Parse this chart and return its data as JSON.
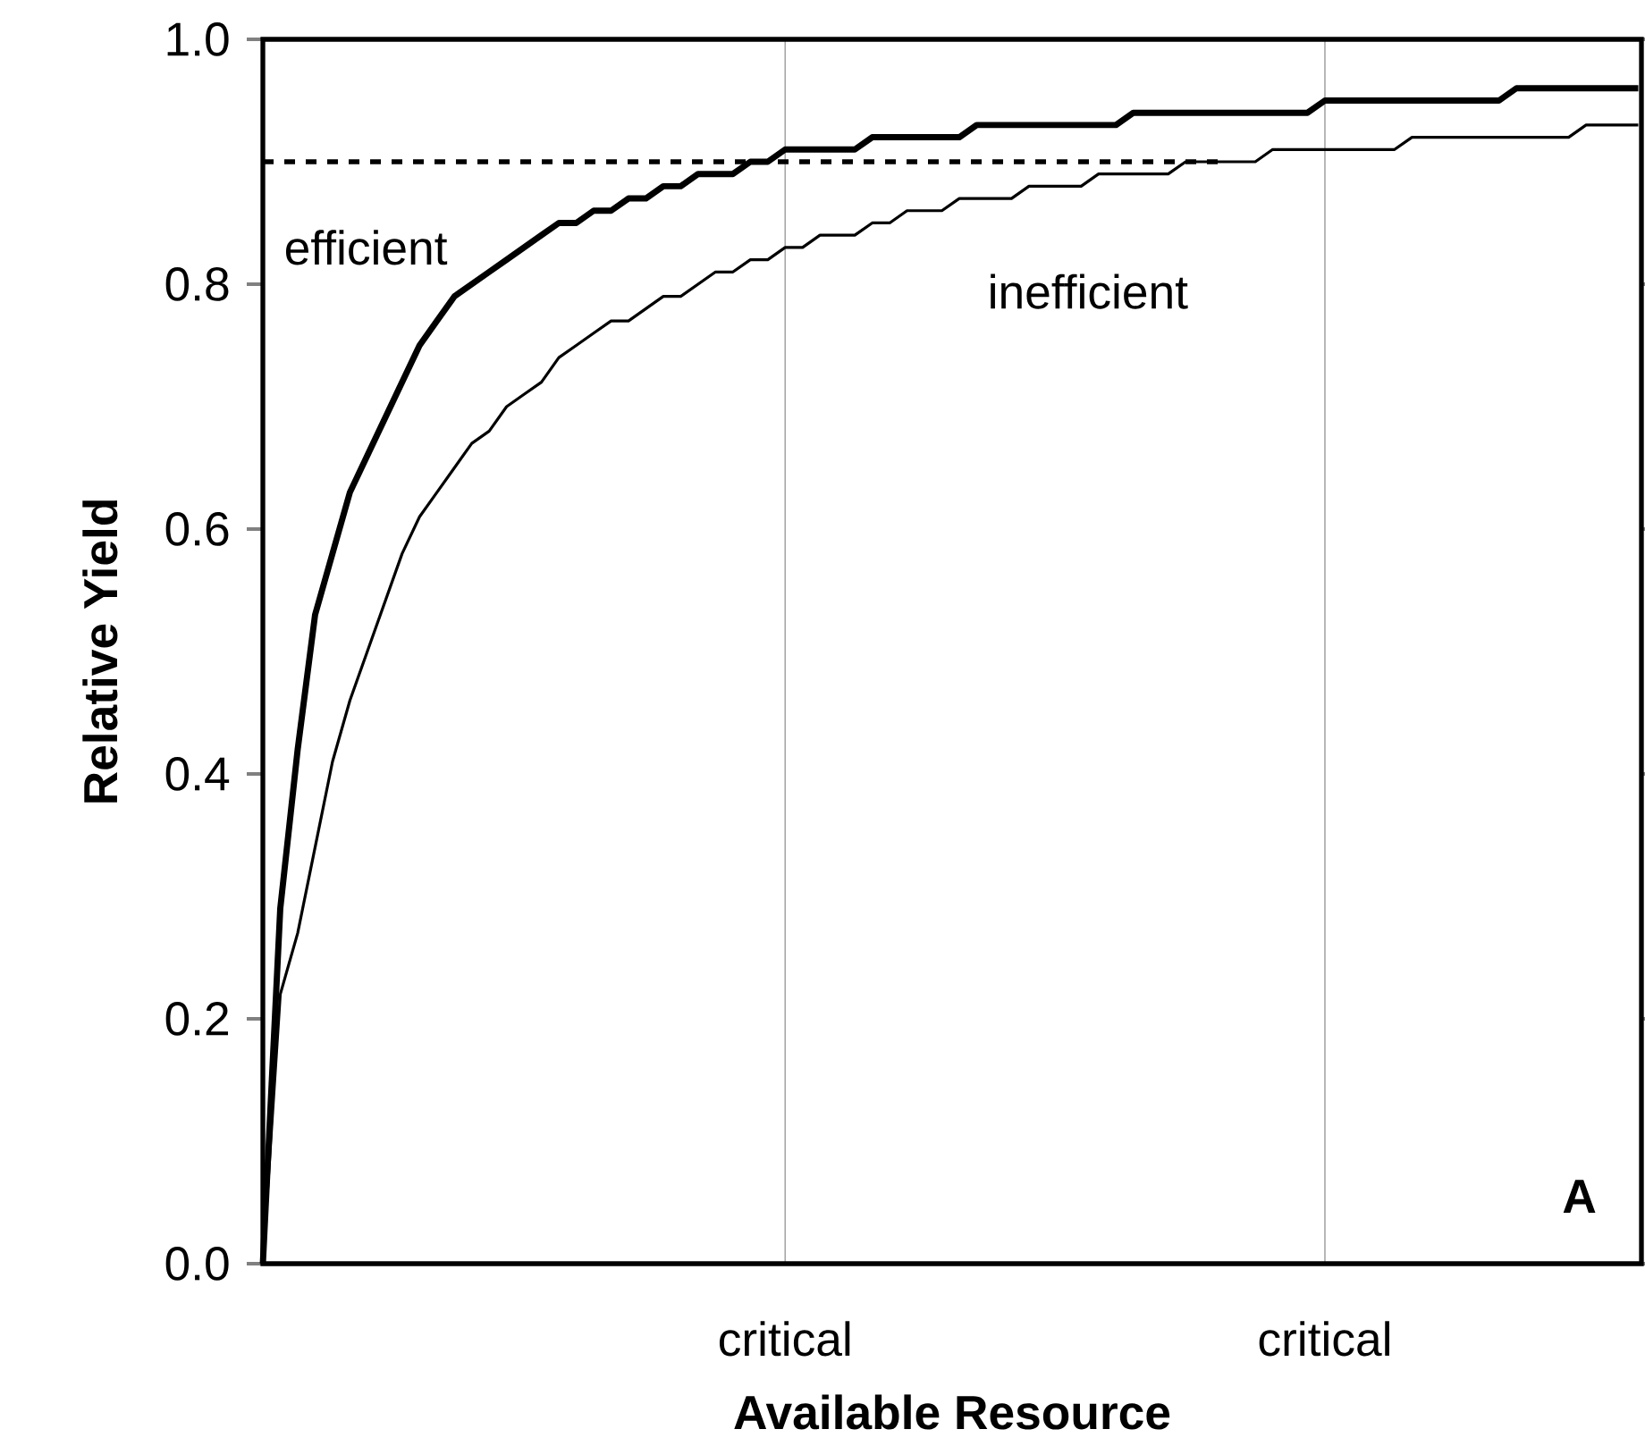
{
  "chart_data": {
    "type": "line",
    "xlabel": "Available Resource",
    "ylabel": "Relative Yield",
    "categories": [
      null,
      null,
      null,
      null,
      null,
      null,
      null,
      null,
      null,
      null,
      null,
      null,
      null,
      null,
      null,
      null,
      null,
      null,
      null,
      null,
      null,
      null,
      null,
      null,
      null,
      null,
      null,
      null,
      null,
      null,
      "critical",
      null,
      null,
      null,
      null,
      null,
      null,
      null,
      null,
      null,
      null,
      null,
      null,
      null,
      null,
      null,
      null,
      null,
      null,
      null,
      null,
      null,
      null,
      null,
      null,
      null,
      null,
      null,
      null,
      null,
      null,
      "critical",
      null,
      null,
      null,
      null,
      null,
      null,
      null,
      null,
      null,
      null,
      null,
      null,
      null,
      null,
      null,
      null,
      null,
      null
    ],
    "ylim": [
      0,
      1.0
    ],
    "yticks": [
      {
        "value": 0,
        "label": "0.0"
      },
      {
        "value": 0.2,
        "label": "0.2"
      },
      {
        "value": 0.4,
        "label": "0.4"
      },
      {
        "value": 0.6,
        "label": "0.6"
      },
      {
        "value": 0.8,
        "label": "0.8"
      },
      {
        "value": 1.0,
        "label": "1.0"
      }
    ],
    "grid": "x",
    "marker": "none",
    "series": [
      {
        "name": "efficient",
        "color": "#000000",
        "values": [
          0,
          0.29,
          0.42,
          0.53,
          0.58,
          0.63,
          0.66,
          0.69,
          0.72,
          0.75,
          0.77,
          0.79,
          0.8,
          0.81,
          0.82,
          0.83,
          0.84,
          0.85,
          0.85,
          0.86,
          0.86,
          0.87,
          0.87,
          0.88,
          0.88,
          0.89,
          0.89,
          0.89,
          0.9,
          0.9,
          0.91,
          0.91,
          0.91,
          0.91,
          0.91,
          0.92,
          0.92,
          0.92,
          0.92,
          0.92,
          0.92,
          0.93,
          0.93,
          0.93,
          0.93,
          0.93,
          0.93,
          0.93,
          0.93,
          0.93,
          0.94,
          0.94,
          0.94,
          0.94,
          0.94,
          0.94,
          0.94,
          0.94,
          0.94,
          0.94,
          0.94,
          0.95,
          0.95,
          0.95,
          0.95,
          0.95,
          0.95,
          0.95,
          0.95,
          0.95,
          0.95,
          0.95,
          0.96,
          0.96,
          0.96,
          0.96,
          0.96,
          0.96,
          0.96,
          0.96
        ]
      },
      {
        "name": "inefficient",
        "color": "#000000",
        "values": [
          0,
          0.22,
          0.27,
          0.34,
          0.41,
          0.46,
          0.5,
          0.54,
          0.58,
          0.61,
          0.63,
          0.65,
          0.67,
          0.68,
          0.7,
          0.71,
          0.72,
          0.74,
          0.75,
          0.76,
          0.77,
          0.77,
          0.78,
          0.79,
          0.79,
          0.8,
          0.81,
          0.81,
          0.82,
          0.82,
          0.83,
          0.83,
          0.84,
          0.84,
          0.84,
          0.85,
          0.85,
          0.86,
          0.86,
          0.86,
          0.87,
          0.87,
          0.87,
          0.87,
          0.88,
          0.88,
          0.88,
          0.88,
          0.89,
          0.89,
          0.89,
          0.89,
          0.89,
          0.9,
          0.9,
          0.9,
          0.9,
          0.9,
          0.91,
          0.91,
          0.91,
          0.91,
          0.91,
          0.91,
          0.91,
          0.91,
          0.92,
          0.92,
          0.92,
          0.92,
          0.92,
          0.92,
          0.92,
          0.92,
          0.92,
          0.92,
          0.93,
          0.93,
          0.93,
          0.93
        ]
      },
      {
        "type": "line",
        "line_style": "dotted",
        "color": "#000000",
        "values": [
          0.9,
          0.9,
          0.9,
          0.9,
          0.9,
          0.9,
          0.9,
          0.9,
          0.9,
          0.9,
          0.9,
          0.9,
          0.9,
          0.9,
          0.9,
          0.9,
          0.9,
          0.9,
          0.9,
          0.9,
          0.9,
          0.9,
          0.9,
          0.9,
          0.9,
          0.9,
          0.9,
          0.9,
          0.9,
          0.9,
          0.9,
          0.9,
          0.9,
          0.9,
          0.9,
          0.9,
          0.9,
          0.9,
          0.9,
          0.9,
          0.9,
          0.9,
          0.9,
          0.9,
          0.9,
          0.9,
          0.9,
          0.9,
          0.9,
          0.9,
          0.9,
          0.9,
          0.9,
          0.9,
          0.9,
          0.9,
          null,
          null,
          null,
          null,
          null,
          null,
          null,
          null,
          null,
          null,
          null,
          null,
          null,
          null,
          null,
          null,
          null,
          null,
          null,
          null,
          null,
          null,
          null,
          null
        ]
      }
    ],
    "annotations": [
      "A"
    ]
  }
}
